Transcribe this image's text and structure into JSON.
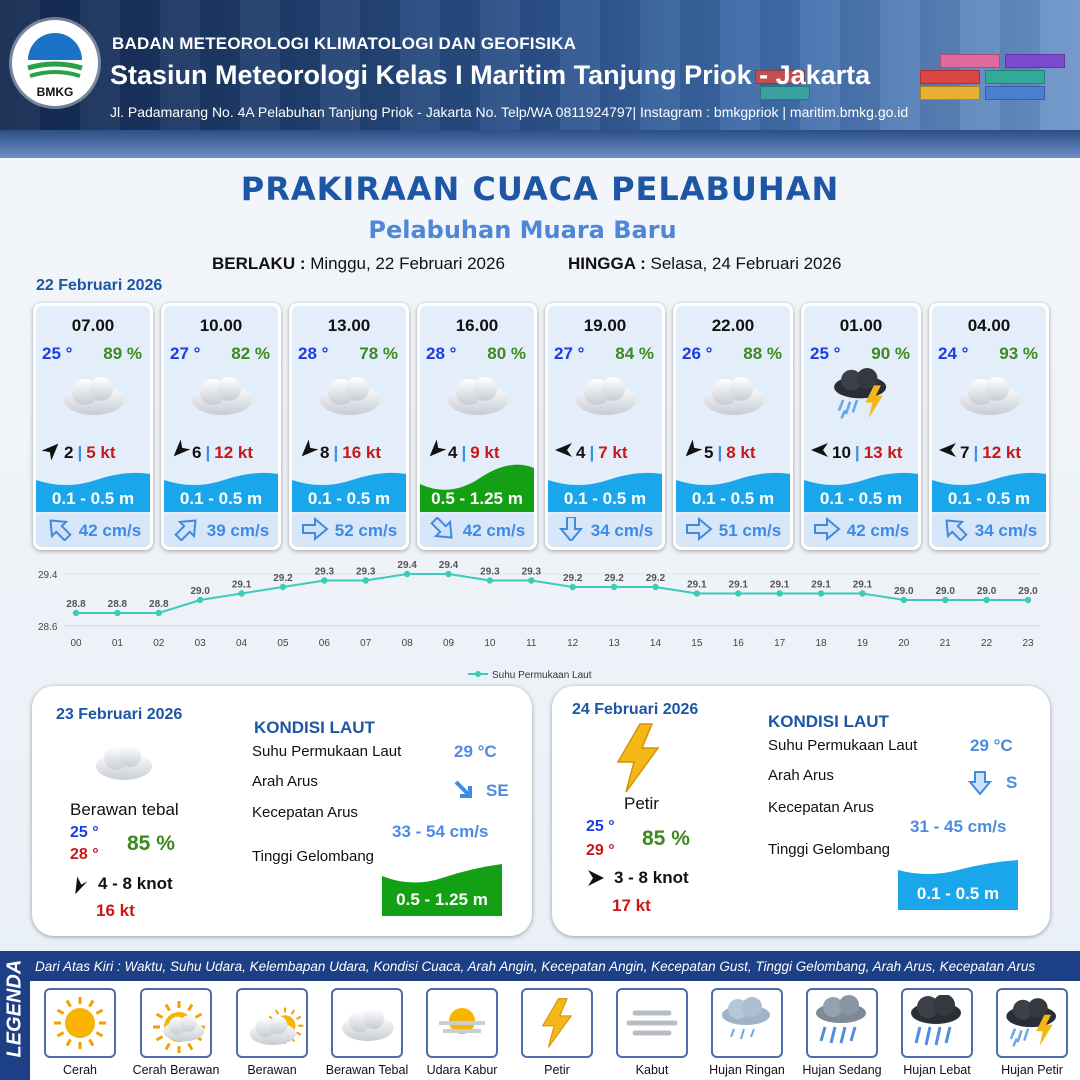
{
  "header": {
    "agency": "BADAN METEOROLOGI KLIMATOLOGI DAN GEOFISIKA",
    "station": "Stasiun Meteorologi Kelas I Maritim Tanjung Priok - Jakarta",
    "address": "Jl. Padamarang No. 4A Pelabuhan Tanjung Priok - Jakarta No. Telp/WA 0811924797| Instagram : bmkgpriok | maritim.bmkg.go.id",
    "logo_text": "BMKG"
  },
  "title": "PRAKIRAAN CUACA PELABUHAN",
  "subtitle": "Pelabuhan Muara Baru",
  "validity": {
    "from_label": "BERLAKU :",
    "from_value": "Minggu, 22 Februari 2026",
    "to_label": "HINGGA :",
    "to_value": "Selasa, 24 Februari 2026"
  },
  "day1_date": "22 Februari 2026",
  "forecasts": [
    {
      "time": "07.00",
      "temp": "25 °",
      "hum": "89 %",
      "icon": "cloud-icon",
      "wind_dir": "NE",
      "wind": "2",
      "gust": "5 kt",
      "wave": "0.1 - 0.5 m",
      "wave_level": "low",
      "current_dir": "SE-rev",
      "current": "42 cm/s"
    },
    {
      "time": "10.00",
      "temp": "27 °",
      "hum": "82 %",
      "icon": "cloud-icon",
      "wind_dir": "SW",
      "wind": "6",
      "gust": "12 kt",
      "wave": "0.1 - 0.5 m",
      "wave_level": "low",
      "current_dir": "NE",
      "current": "39 cm/s"
    },
    {
      "time": "13.00",
      "temp": "28 °",
      "hum": "78 %",
      "icon": "cloud-icon",
      "wind_dir": "SW",
      "wind": "8",
      "gust": "16 kt",
      "wave": "0.1 - 0.5 m",
      "wave_level": "low",
      "current_dir": "E",
      "current": "52 cm/s"
    },
    {
      "time": "16.00",
      "temp": "28 °",
      "hum": "80 %",
      "icon": "cloud-icon",
      "wind_dir": "SW",
      "wind": "4",
      "gust": "9 kt",
      "wave": "0.5 - 1.25 m",
      "wave_level": "mid",
      "current_dir": "SE",
      "current": "42 cm/s"
    },
    {
      "time": "19.00",
      "temp": "27 °",
      "hum": "84 %",
      "icon": "cloud-icon",
      "wind_dir": "W",
      "wind": "4",
      "gust": "7 kt",
      "wave": "0.1 - 0.5 m",
      "wave_level": "low",
      "current_dir": "S",
      "current": "34 cm/s"
    },
    {
      "time": "22.00",
      "temp": "26 °",
      "hum": "88 %",
      "icon": "cloud-icon",
      "wind_dir": "SW",
      "wind": "5",
      "gust": "8 kt",
      "wave": "0.1 - 0.5 m",
      "wave_level": "low",
      "current_dir": "E",
      "current": "51 cm/s"
    },
    {
      "time": "01.00",
      "temp": "25 °",
      "hum": "90 %",
      "icon": "thunderstorm-rain-icon",
      "wind_dir": "W",
      "wind": "10",
      "gust": "13 kt",
      "wave": "0.1 - 0.5 m",
      "wave_level": "low",
      "current_dir": "E",
      "current": "42 cm/s"
    },
    {
      "time": "04.00",
      "temp": "24 °",
      "hum": "93 %",
      "icon": "cloud-icon",
      "wind_dir": "W",
      "wind": "7",
      "gust": "12 kt",
      "wave": "0.1 - 0.5 m",
      "wave_level": "low",
      "current_dir": "SE-rev",
      "current": "34 cm/s"
    }
  ],
  "chart_data": {
    "type": "line",
    "legend": "Suhu Permukaan Laut",
    "x": [
      "00",
      "01",
      "02",
      "03",
      "04",
      "05",
      "06",
      "07",
      "08",
      "09",
      "10",
      "11",
      "12",
      "13",
      "14",
      "15",
      "16",
      "17",
      "18",
      "19",
      "20",
      "21",
      "22",
      "23"
    ],
    "values": [
      28.8,
      28.8,
      28.8,
      29.0,
      29.1,
      29.2,
      29.3,
      29.3,
      29.4,
      29.4,
      29.3,
      29.3,
      29.2,
      29.2,
      29.2,
      29.1,
      29.1,
      29.1,
      29.1,
      29.1,
      29.0,
      29.0,
      29.0,
      29.0
    ],
    "labels": [
      "28.8",
      "28.8",
      "28.8",
      "29.0",
      "29.1",
      "29.2",
      "29.3",
      "29.3",
      "29.4",
      "29.4",
      "29.3",
      "29.3",
      "29.2",
      "29.2",
      "29.2",
      "29.1",
      "29.1",
      "29.1",
      "29.1",
      "29.1",
      "29.0",
      "29.0",
      "29.0",
      "29.0"
    ],
    "ylim": [
      28.6,
      29.4
    ],
    "yticks": [
      "29.4",
      "28.6"
    ],
    "color": "#3ccbb8"
  },
  "day2": {
    "date": "23 Februari 2026",
    "condition": "Berawan tebal",
    "temp_min": "25 °",
    "temp_max": "28 °",
    "hum": "85 %",
    "wind": "4  - 8 knot",
    "gust": "16 kt",
    "sea_title": "KONDISI LAUT",
    "sst_label": "Suhu Permukaan Laut",
    "sst": "29 °C",
    "cur_dir_label": "Arah Arus",
    "cur_dir": "SE",
    "cur_speed_label": "Kecepatan Arus",
    "cur_speed": "33  - 54 cm/s",
    "wave_label": "Tinggi Gelombang",
    "wave": "0.5 - 1.25 m"
  },
  "day3": {
    "date": "24 Februari 2026",
    "condition": "Petir",
    "temp_min": "25 °",
    "temp_max": "29 °",
    "hum": "85 %",
    "wind": "3  - 8 knot",
    "gust": "17 kt",
    "sea_title": "KONDISI LAUT",
    "sst_label": "Suhu Permukaan Laut",
    "sst": "29 °C",
    "cur_dir_label": "Arah Arus",
    "cur_dir": "S",
    "cur_speed_label": "Kecepatan Arus",
    "cur_speed": "31  - 45 cm/s",
    "wave_label": "Tinggi Gelombang",
    "wave": "0.1 - 0.5 m"
  },
  "legend": {
    "side_label": "LEGENDA",
    "description": "Dari Atas Kiri : Waktu, Suhu Udara, Kelembapan Udara, Kondisi Cuaca, Arah Angin, Kecepatan Angin, Kecepatan Gust, Tinggi Gelombang, Arah Arus, Kecepatan Arus",
    "items": [
      "Cerah",
      "Cerah Berawan",
      "Berawan",
      "Berawan Tebal",
      "Udara Kabur",
      "Petir",
      "Kabut",
      "Hujan Ringan",
      "Hujan Sedang",
      "Hujan Lebat",
      "Hujan Petir"
    ]
  },
  "colors": {
    "primary": "#1d56a4",
    "low_wave": "#1aa6ea",
    "mid_wave": "#14a014",
    "gust": "#c81818",
    "temp": "#1a3ee0",
    "hum": "#3d8a1e"
  }
}
